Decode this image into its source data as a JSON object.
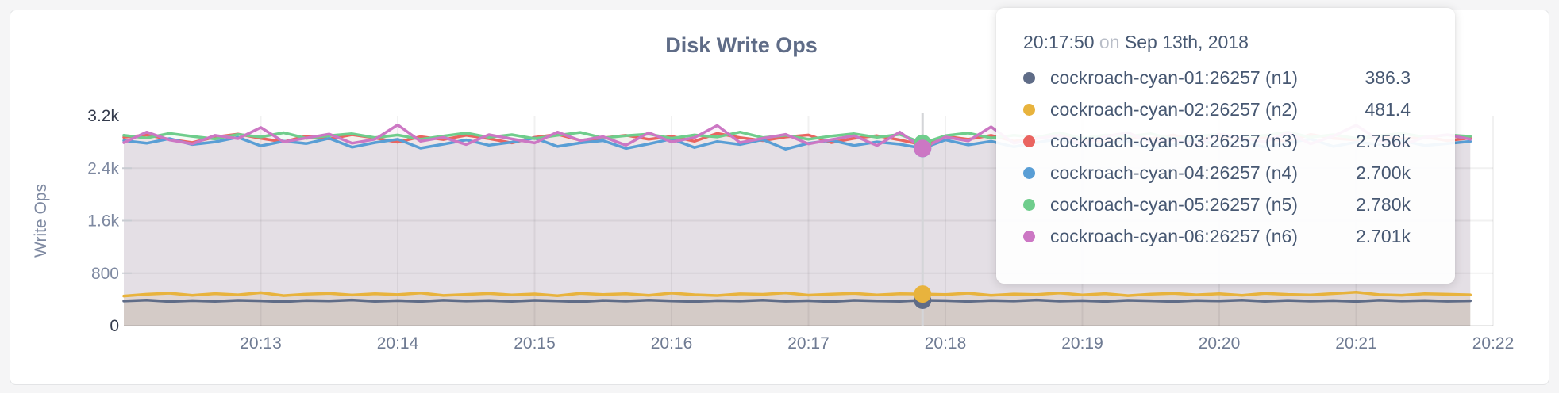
{
  "panel": {
    "title": "Disk Write Ops"
  },
  "tooltip": {
    "time": "20:17:50",
    "conjunction": "on",
    "date": "Sep 13th, 2018",
    "rows": [
      {
        "label": "cockroach-cyan-01:26257 (n1)",
        "value": "386.3",
        "color": "#5f6c87"
      },
      {
        "label": "cockroach-cyan-02:26257 (n2)",
        "value": "481.4",
        "color": "#e8b33d"
      },
      {
        "label": "cockroach-cyan-03:26257 (n3)",
        "value": "2.756k",
        "color": "#ea6460"
      },
      {
        "label": "cockroach-cyan-04:26257 (n4)",
        "value": "2.700k",
        "color": "#599ed5"
      },
      {
        "label": "cockroach-cyan-05:26257 (n5)",
        "value": "2.780k",
        "color": "#6fcd8c"
      },
      {
        "label": "cockroach-cyan-06:26257 (n6)",
        "value": "2.701k",
        "color": "#cc77c4"
      }
    ]
  },
  "chart_data": {
    "type": "line",
    "title": "Disk Write Ops",
    "ylabel": "Write Ops",
    "ylim": [
      0,
      3200
    ],
    "grid": true,
    "legend_position": "tooltip-only",
    "x_start_time": "20:12:00",
    "x_step_seconds": 10,
    "x_domain_end": "20:22:00",
    "hover_time": "20:17:50",
    "hover_index": 35,
    "yticks": [
      {
        "v": 0,
        "label": "0",
        "emphasis": true
      },
      {
        "v": 800,
        "label": "800",
        "emphasis": false
      },
      {
        "v": 1600,
        "label": "1.6k",
        "emphasis": false
      },
      {
        "v": 2400,
        "label": "2.4k",
        "emphasis": false
      },
      {
        "v": 3200,
        "label": "3.2k",
        "emphasis": true
      }
    ],
    "xticks": [
      "20:13",
      "20:14",
      "20:15",
      "20:16",
      "20:17",
      "20:18",
      "20:19",
      "20:20",
      "20:21",
      "20:22"
    ],
    "series": [
      {
        "name": "cockroach-cyan-01:26257 (n1)",
        "color": "#5f6c87",
        "fill_opacity": 0.12,
        "hover_value": 386.3,
        "values": [
          375,
          390,
          368,
          382,
          371,
          386,
          379,
          365,
          384,
          377,
          391,
          372,
          381,
          369,
          388,
          376,
          383,
          371,
          387,
          378,
          366,
          385,
          374,
          390,
          377,
          368,
          382,
          375,
          389,
          373,
          380,
          367,
          386,
          378,
          372,
          386.3,
          381,
          369,
          384,
          376,
          391,
          374,
          382,
          370,
          387,
          379,
          368,
          383,
          377,
          390,
          372,
          385,
          374,
          381,
          369,
          388,
          376,
          383,
          373,
          379
        ]
      },
      {
        "name": "cockroach-cyan-02:26257 (n2)",
        "color": "#e8b33d",
        "fill_opacity": 0.14,
        "hover_value": 481.4,
        "values": [
          452,
          478,
          495,
          463,
          488,
          470,
          502,
          458,
          481,
          493,
          466,
          485,
          472,
          498,
          460,
          476,
          490,
          468,
          483,
          455,
          492,
          474,
          487,
          462,
          496,
          471,
          459,
          484,
          477,
          500,
          465,
          479,
          491,
          469,
          486,
          481.4,
          473,
          495,
          461,
          482,
          475,
          497,
          467,
          488,
          458,
          480,
          493,
          470,
          485,
          463,
          491,
          476,
          468,
          489,
          510,
          472,
          464,
          486,
          478,
          470
        ]
      },
      {
        "name": "cockroach-cyan-03:26257 (n3)",
        "color": "#ea6460",
        "fill_opacity": 0.08,
        "hover_value": 2756,
        "values": [
          2870,
          2905,
          2840,
          2790,
          2875,
          2920,
          2855,
          2800,
          2890,
          2845,
          2910,
          2860,
          2795,
          2880,
          2835,
          2900,
          2850,
          2785,
          2870,
          2915,
          2825,
          2860,
          2900,
          2840,
          2885,
          2810,
          2930,
          2865,
          2820,
          2875,
          2905,
          2790,
          2855,
          2895,
          2830,
          2756,
          2885,
          2840,
          2900,
          2810,
          2870,
          2920,
          2845,
          2795,
          2880,
          2850,
          2905,
          2825,
          2890,
          2835,
          2870,
          2800,
          2915,
          2855,
          2830,
          2895,
          2845,
          2875,
          2820,
          2860
        ]
      },
      {
        "name": "cockroach-cyan-04:26257 (n4)",
        "color": "#599ed5",
        "fill_opacity": 0.08,
        "hover_value": 2700,
        "values": [
          2820,
          2780,
          2850,
          2760,
          2800,
          2870,
          2740,
          2810,
          2775,
          2855,
          2720,
          2790,
          2840,
          2705,
          2765,
          2830,
          2750,
          2795,
          2860,
          2730,
          2785,
          2820,
          2700,
          2770,
          2845,
          2715,
          2805,
          2760,
          2835,
          2690,
          2780,
          2825,
          2745,
          2800,
          2765,
          2700,
          2830,
          2755,
          2810,
          2725,
          2790,
          2850,
          2735,
          2775,
          2815,
          2695,
          2760,
          2835,
          2750,
          2805,
          2720,
          2785,
          2845,
          2730,
          2795,
          2760,
          2820,
          2745,
          2775,
          2808
        ]
      },
      {
        "name": "cockroach-cyan-05:26257 (n5)",
        "color": "#6fcd8c",
        "fill_opacity": 0.08,
        "hover_value": 2780,
        "values": [
          2900,
          2860,
          2930,
          2885,
          2845,
          2915,
          2875,
          2940,
          2855,
          2895,
          2925,
          2865,
          2905,
          2840,
          2890,
          2935,
          2870,
          2910,
          2850,
          2900,
          2945,
          2860,
          2895,
          2920,
          2855,
          2905,
          2875,
          2950,
          2865,
          2900,
          2840,
          2890,
          2925,
          2870,
          2915,
          2780,
          2895,
          2935,
          2860,
          2900,
          2870,
          2940,
          2855,
          2905,
          2885,
          2925,
          2845,
          2890,
          2915,
          2865,
          2900,
          2950,
          2870,
          2910,
          2855,
          2895,
          2930,
          2875,
          2905,
          2885
        ]
      },
      {
        "name": "cockroach-cyan-06:26257 (n6)",
        "color": "#cc77c4",
        "fill_opacity": 0.08,
        "hover_value": 2701,
        "values": [
          2790,
          2950,
          2830,
          2770,
          2900,
          2850,
          3020,
          2800,
          2860,
          2920,
          2780,
          2840,
          3060,
          2810,
          2870,
          2760,
          2910,
          2845,
          2785,
          2950,
          2820,
          2880,
          2750,
          2940,
          2800,
          2865,
          3050,
          2790,
          2855,
          2915,
          2770,
          2835,
          2895,
          2745,
          2950,
          2701,
          2875,
          2815,
          3030,
          2780,
          2850,
          2900,
          2760,
          2885,
          2940,
          2795,
          2830,
          2755,
          2920,
          2860,
          2800,
          2945,
          2770,
          2890,
          3055,
          2825,
          2755,
          2870,
          2910,
          2840
        ]
      }
    ],
    "colors": {
      "axis_label": "#7e89a1",
      "axis_maxmin": "#343b4c",
      "x_tick_label": "#6f7b93",
      "grid_line": "rgba(0,0,0,0.055)",
      "axis_bottom_line": "rgba(0,0,0,0.09)",
      "hover_line": "#d4d5d8"
    }
  }
}
